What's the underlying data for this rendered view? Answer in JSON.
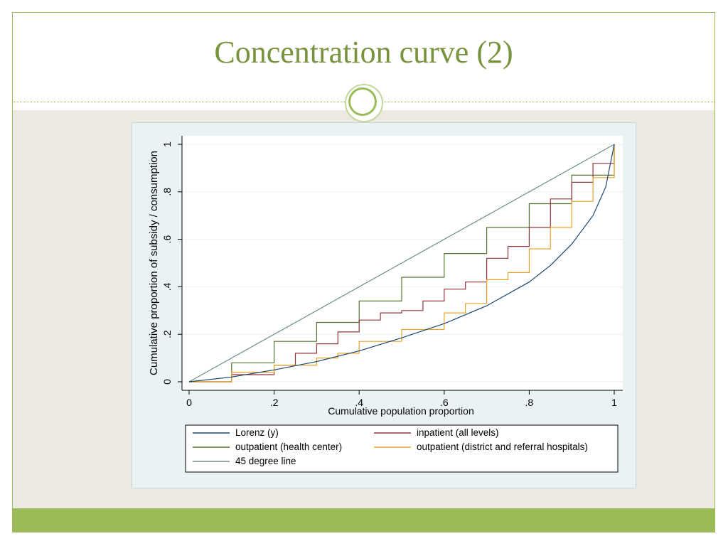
{
  "slide": {
    "title": "Concentration curve (2)"
  },
  "colors": {
    "accent": "#9bbb59",
    "title": "#77933c",
    "background": "#eceae0",
    "plot_bg": "#ffffff",
    "chart_bg": "#eaf2f3"
  },
  "chart_data": {
    "type": "line",
    "title": "",
    "xlabel": "Cumulative population proportion",
    "ylabel": "Cumulative proportion of subsidy / consumption",
    "xlim": [
      0,
      1
    ],
    "ylim": [
      0,
      1
    ],
    "xticks": [
      0,
      0.2,
      0.4,
      0.6,
      0.8,
      1
    ],
    "xtick_labels": [
      "0",
      ".2",
      ".4",
      ".6",
      ".8",
      "1"
    ],
    "yticks": [
      0,
      0.2,
      0.4,
      0.6,
      0.8,
      1
    ],
    "ytick_labels": [
      "0",
      ".2",
      ".4",
      ".6",
      ".8",
      "1"
    ],
    "grid": true,
    "legend_position": "bottom",
    "series": [
      {
        "name": "Lorenz (y)",
        "color": "#1a476f",
        "x": [
          0,
          0.1,
          0.2,
          0.3,
          0.4,
          0.5,
          0.6,
          0.7,
          0.8,
          0.85,
          0.9,
          0.95,
          0.98,
          1
        ],
        "y": [
          0,
          0.02,
          0.05,
          0.085,
          0.13,
          0.185,
          0.245,
          0.32,
          0.42,
          0.49,
          0.58,
          0.7,
          0.82,
          1
        ]
      },
      {
        "name": "inpatient (all levels)",
        "color": "#90353b",
        "x": [
          0,
          0.1,
          0.2,
          0.25,
          0.3,
          0.35,
          0.4,
          0.45,
          0.5,
          0.55,
          0.6,
          0.65,
          0.7,
          0.75,
          0.8,
          0.85,
          0.9,
          0.95,
          1
        ],
        "y": [
          0,
          0.03,
          0.07,
          0.12,
          0.16,
          0.21,
          0.26,
          0.29,
          0.3,
          0.34,
          0.39,
          0.42,
          0.52,
          0.57,
          0.65,
          0.77,
          0.84,
          0.92,
          1
        ]
      },
      {
        "name": "outpatient (health center)",
        "color": "#55752f",
        "x": [
          0,
          0.1,
          0.2,
          0.3,
          0.4,
          0.5,
          0.6,
          0.7,
          0.8,
          0.9,
          1
        ],
        "y": [
          0,
          0.08,
          0.17,
          0.25,
          0.34,
          0.44,
          0.54,
          0.65,
          0.75,
          0.87,
          1
        ]
      },
      {
        "name": "outpatient (district and referral hospitals)",
        "color": "#e8a32a",
        "x": [
          0,
          0.1,
          0.2,
          0.3,
          0.35,
          0.4,
          0.5,
          0.6,
          0.65,
          0.7,
          0.75,
          0.8,
          0.85,
          0.9,
          0.95,
          1
        ],
        "y": [
          0,
          0.04,
          0.07,
          0.1,
          0.12,
          0.17,
          0.22,
          0.29,
          0.33,
          0.43,
          0.46,
          0.56,
          0.65,
          0.76,
          0.86,
          1
        ]
      },
      {
        "name": "45 degree line",
        "color": "#6e8e84",
        "x": [
          0,
          1
        ],
        "y": [
          0,
          1
        ]
      }
    ]
  }
}
